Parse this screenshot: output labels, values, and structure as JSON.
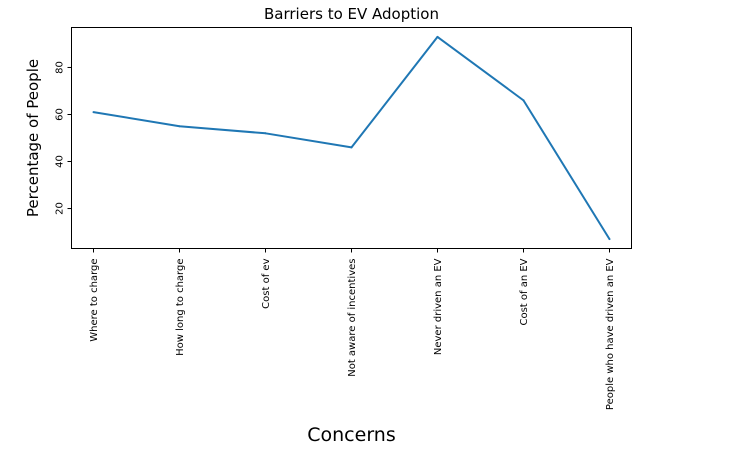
{
  "chart_data": {
    "type": "line",
    "title": "Barriers to EV Adoption",
    "xlabel": "Concerns",
    "ylabel": "Percentage of People",
    "categories": [
      "Where to charge",
      "How long to charge",
      "Cost of ev",
      "Not aware of incentives",
      "Never driven an EV",
      "Cost of an EV",
      "People who have driven an EV"
    ],
    "series": [
      {
        "values": [
          61,
          55,
          52,
          46,
          93,
          66,
          7
        ]
      }
    ],
    "ylim": [
      3,
      97
    ],
    "yticks": [
      20,
      40,
      60,
      80
    ],
    "grid": false,
    "colors": {
      "line": "#1f77b4",
      "axes": "#000000",
      "text": "#000000"
    }
  }
}
